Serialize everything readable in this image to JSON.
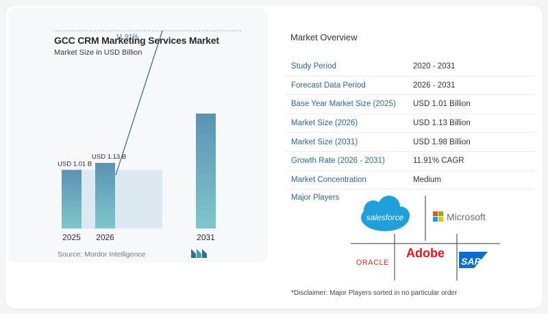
{
  "chart_data": {
    "type": "bar",
    "title": "GCC CRM Marketing Services Market",
    "subtitle": "Market Size in USD Billion",
    "categories": [
      "2025",
      "2026",
      "2031"
    ],
    "values": [
      1.01,
      1.13,
      1.98
    ],
    "data_labels": [
      "USD 1.01 B",
      "USD 1.13 B",
      ""
    ],
    "cagr_label": "11.91%",
    "source": "Source: Mordor Intelligence",
    "colors": {
      "bar_top": "#5b93b3",
      "bar_bottom": "#7fc6cc",
      "band": "#dde9f0"
    }
  },
  "overview": {
    "title": "Market Overview",
    "rows": [
      {
        "label": "Study Period",
        "value": "2020 - 2031"
      },
      {
        "label": "Forecast Data Period",
        "value": "2026 - 2031"
      },
      {
        "label": "Base Year Market Size (2025)",
        "value": "USD 1.01 Billion"
      },
      {
        "label": "Market Size (2026)",
        "value": "USD 1.13 Billion"
      },
      {
        "label": "Market Size (2031)",
        "value": "USD 1.98 Billion"
      },
      {
        "label": "Growth Rate (2026 - 2031)",
        "value": "11.91% CAGR"
      },
      {
        "label": "Market Concentration",
        "value": "Medium"
      }
    ],
    "players_title": "Major Players",
    "players": [
      "salesforce",
      "Microsoft",
      "Adobe",
      "ORACLE",
      "SAP"
    ],
    "disclaimer": "*Disclaimer: Major Players sorted in no particular order"
  }
}
